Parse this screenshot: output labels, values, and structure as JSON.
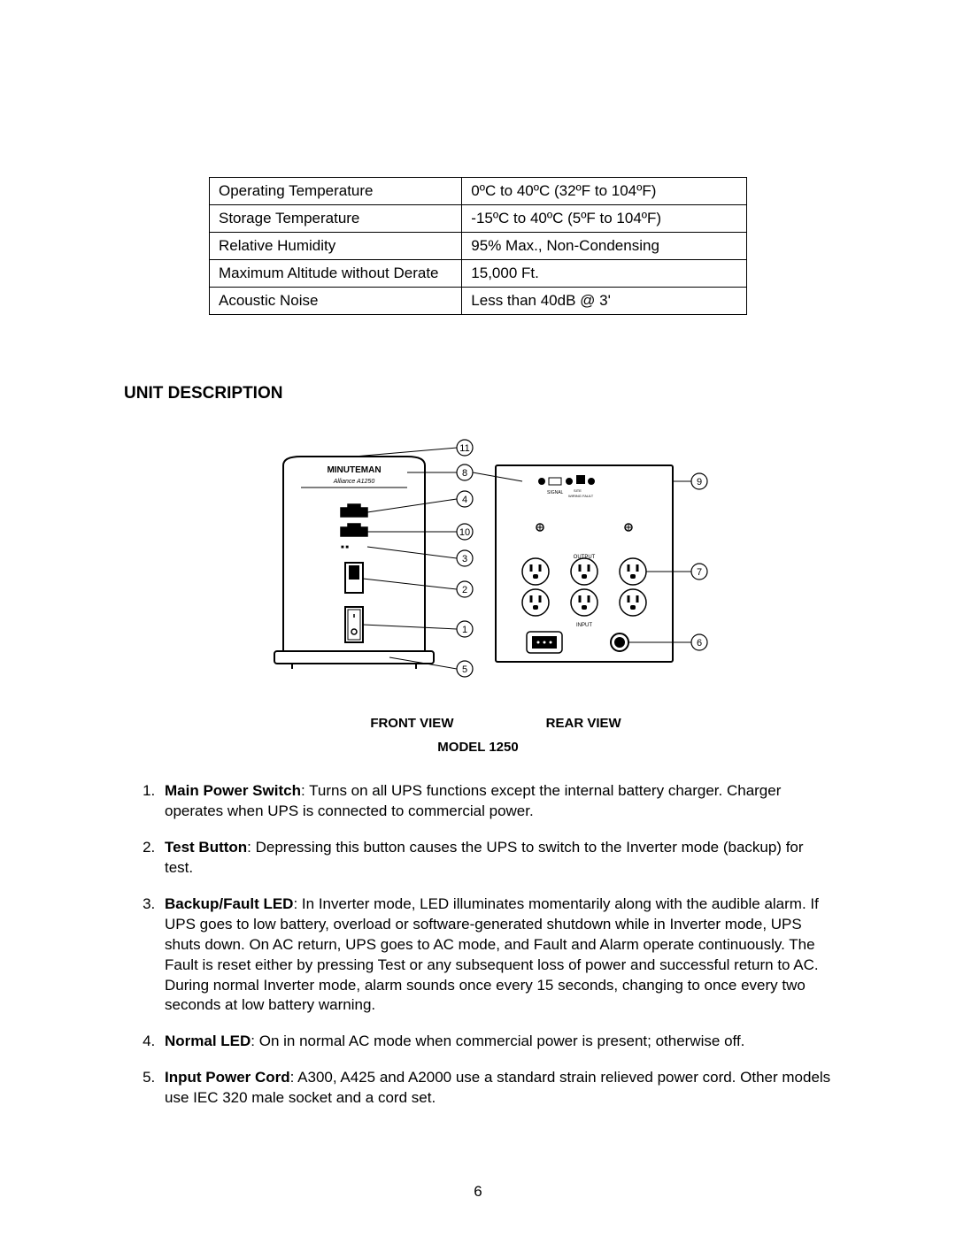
{
  "specs": {
    "rows": [
      {
        "label": "Operating Temperature",
        "value": "0ºC to 40ºC (32ºF to 104ºF)"
      },
      {
        "label": "Storage Temperature",
        "value": "-15ºC to 40ºC (5ºF to 104ºF)"
      },
      {
        "label": "Relative Humidity",
        "value": "95% Max., Non-Condensing"
      },
      {
        "label": "Maximum Altitude without Derate",
        "value": "15,000 Ft."
      },
      {
        "label": "Acoustic Noise",
        "value": "Less than 40dB @ 3'"
      }
    ]
  },
  "section_title": "UNIT DESCRIPTION",
  "diagram": {
    "front_label": "FRONT VIEW",
    "rear_label": "REAR VIEW",
    "model_label": "MODEL 1250",
    "brand_top": "MINUTEMAN",
    "brand_sub": "Alliance A1250",
    "signal_label": "SIGNAL",
    "fault_label": "SITE WIRING FAULT",
    "output_label": "OUTPUT",
    "input_label": "INPUT",
    "callouts_left": [
      "11",
      "8",
      "4",
      "10",
      "3",
      "2",
      "1",
      "5"
    ],
    "callouts_right": [
      "9",
      "7",
      "6"
    ]
  },
  "items": [
    {
      "label": "Main Power Switch",
      "text": ": Turns on all UPS functions except the internal battery charger.  Charger operates when UPS is connected to commercial power."
    },
    {
      "label": "Test Button",
      "text": ": Depressing this button causes the UPS to switch to the Inverter mode (backup) for test."
    },
    {
      "label": "Backup/Fault LED",
      "text": ": In Inverter mode, LED illuminates momentarily along with the audible alarm.  If UPS goes to low battery, overload or software-generated shutdown while in Inverter mode, UPS shuts down.  On AC return, UPS goes to AC mode, and Fault and Alarm operate continuously.  The Fault is reset either by pressing Test or any subsequent loss of power and successful return to AC.  During normal Inverter mode, alarm sounds once every 15 seconds, changing to once every two seconds at low battery warning."
    },
    {
      "label": "Normal LED",
      "text": ": On in normal AC mode when commercial power is present; otherwise off."
    },
    {
      "label": "Input Power Cord",
      "text": ": A300, A425 and A2000 use a standard strain relieved power cord.  Other models use IEC 320 male socket and a cord set."
    }
  ],
  "page_number": "6"
}
